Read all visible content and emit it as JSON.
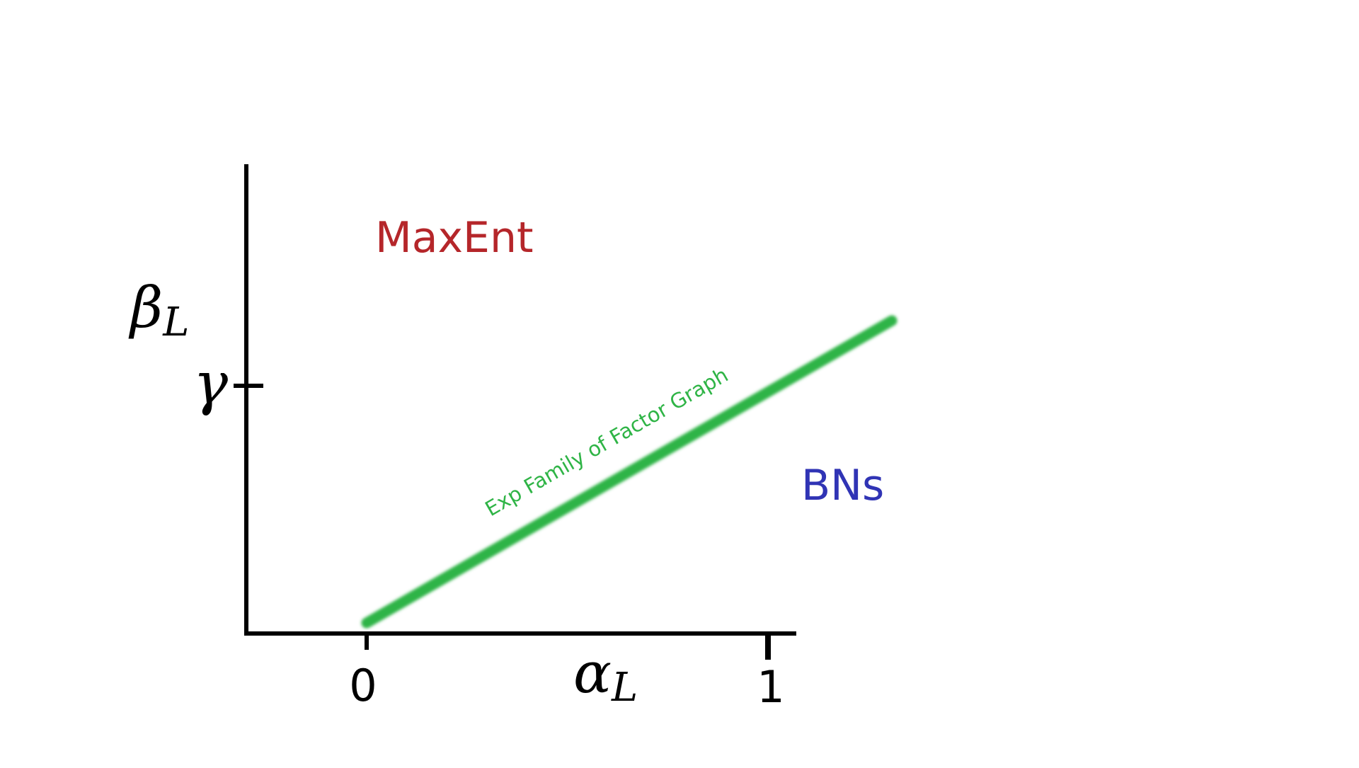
{
  "diagram": {
    "y_axis_symbol": "β",
    "y_axis_subscript": "L",
    "x_axis_symbol": "α",
    "x_axis_subscript": "L",
    "y_tick_label": "γ",
    "x_tick_labels": [
      "0",
      "1"
    ],
    "lines": [
      {
        "name": "MaxEnt",
        "color": "#b5262a"
      },
      {
        "name": "BNs",
        "color": "#3034b5"
      },
      {
        "name": "Exp Family of Factor Graph",
        "color": "#2fb446"
      }
    ],
    "axis_color": "#000000"
  }
}
